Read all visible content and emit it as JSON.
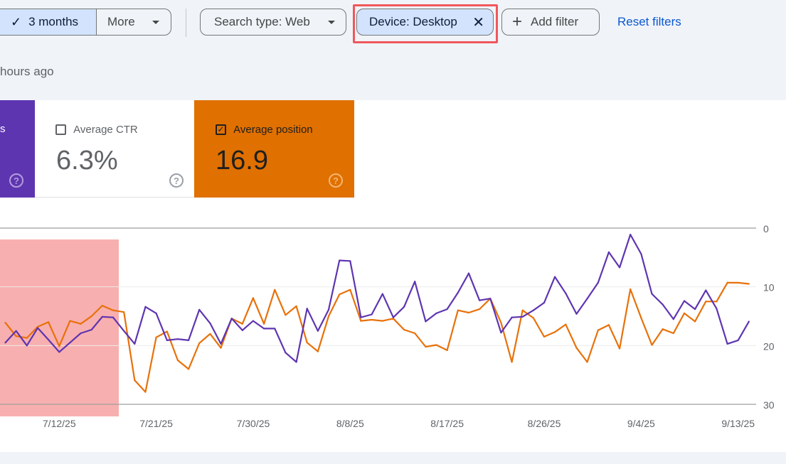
{
  "toolbar": {
    "date_range_selected": "3 months",
    "more_label": "More",
    "search_type": "Search type: Web",
    "device_filter": "Device: Desktop",
    "add_filter": "Add filter",
    "reset_filters": "Reset filters"
  },
  "last_updated": "hours ago",
  "metrics": [
    {
      "label": "s",
      "checked": true,
      "color": "#5e35b1"
    },
    {
      "label": "Average CTR",
      "value": "6.3%",
      "checked": false
    },
    {
      "label": "Average position",
      "value": "16.9",
      "checked": true,
      "color": "#e37400"
    }
  ],
  "colors": {
    "accent": "#0b57d0",
    "chip_bg": "#d3e3fd",
    "highlight_box": "#f0575b",
    "purple": "#5e35b1",
    "orange": "#e8710a"
  },
  "chart_data": {
    "type": "line",
    "y_axis_side": "right",
    "y_inverted": true,
    "ylim": [
      0,
      30
    ],
    "y_ticks": [
      "0",
      "10",
      "20",
      "30"
    ],
    "x_ticks": [
      "7/12/25",
      "7/21/25",
      "7/30/25",
      "8/8/25",
      "8/17/25",
      "8/26/25",
      "9/4/25",
      "9/13/25"
    ],
    "grid": true,
    "highlight_range": [
      "7/7/25",
      "7/17/25"
    ],
    "x": [
      "7/7/25",
      "7/8/25",
      "7/9/25",
      "7/10/25",
      "7/11/25",
      "7/12/25",
      "7/13/25",
      "7/14/25",
      "7/15/25",
      "7/16/25",
      "7/17/25",
      "7/18/25",
      "7/19/25",
      "7/20/25",
      "7/21/25",
      "7/22/25",
      "7/23/25",
      "7/24/25",
      "7/25/25",
      "7/26/25",
      "7/27/25",
      "7/28/25",
      "7/29/25",
      "7/30/25",
      "7/31/25",
      "8/1/25",
      "8/2/25",
      "8/3/25",
      "8/4/25",
      "8/5/25",
      "8/6/25",
      "8/7/25",
      "8/8/25",
      "8/9/25",
      "8/10/25",
      "8/11/25",
      "8/12/25",
      "8/13/25",
      "8/14/25",
      "8/15/25",
      "8/16/25",
      "8/17/25",
      "8/18/25",
      "8/19/25",
      "8/20/25",
      "8/21/25",
      "8/22/25",
      "8/23/25",
      "8/24/25",
      "8/25/25",
      "8/26/25",
      "8/27/25",
      "8/28/25",
      "8/29/25",
      "8/30/25",
      "8/31/25",
      "9/1/25",
      "9/2/25",
      "9/3/25",
      "9/4/25",
      "9/5/25",
      "9/6/25",
      "9/7/25",
      "9/8/25",
      "9/9/25",
      "9/10/25",
      "9/11/25",
      "9/12/25",
      "9/13/25",
      "9/14/25"
    ],
    "series": [
      {
        "color": "#e8710a",
        "values": [
          16.1,
          18.4,
          18.7,
          16.8,
          16.0,
          20.1,
          15.8,
          16.3,
          15.0,
          13.2,
          14.0,
          14.3,
          25.9,
          27.9,
          18.6,
          17.6,
          22.5,
          24.0,
          19.6,
          18.0,
          20.4,
          15.4,
          16.3,
          11.9,
          16.3,
          10.5,
          14.8,
          13.3,
          19.5,
          21.0,
          15.0,
          11.3,
          10.5,
          15.8,
          15.6,
          15.8,
          15.4,
          17.3,
          17.9,
          20.2,
          19.9,
          20.8,
          14.0,
          14.4,
          13.8,
          12.0,
          16.1,
          22.8,
          14.0,
          15.3,
          18.5,
          17.7,
          16.4,
          20.4,
          22.8,
          17.4,
          16.5,
          20.5,
          10.4,
          15.3,
          19.9,
          17.2,
          17.9,
          14.5,
          15.9,
          12.5,
          12.5,
          9.3,
          9.3,
          9.5
        ]
      },
      {
        "color": "#5e35b1",
        "values": [
          19.5,
          17.5,
          20.0,
          17.0,
          19.0,
          21.1,
          19.5,
          17.9,
          17.3,
          15.1,
          15.2,
          17.5,
          19.7,
          13.4,
          14.5,
          19.1,
          18.9,
          19.1,
          13.9,
          16.2,
          19.7,
          15.4,
          17.4,
          15.8,
          17.1,
          17.1,
          21.2,
          22.8,
          13.7,
          17.5,
          13.9,
          5.5,
          5.6,
          15.2,
          14.7,
          11.2,
          15.2,
          13.4,
          9.1,
          15.9,
          14.5,
          13.8,
          11.0,
          7.7,
          12.3,
          12.0,
          17.8,
          15.2,
          15.1,
          14.0,
          12.7,
          8.3,
          11.1,
          14.6,
          12.0,
          9.3,
          4.1,
          6.7,
          1.1,
          4.4,
          11.2,
          13.0,
          15.5,
          12.4,
          13.8,
          10.6,
          13.7,
          19.7,
          19.1,
          15.9
        ]
      }
    ]
  }
}
